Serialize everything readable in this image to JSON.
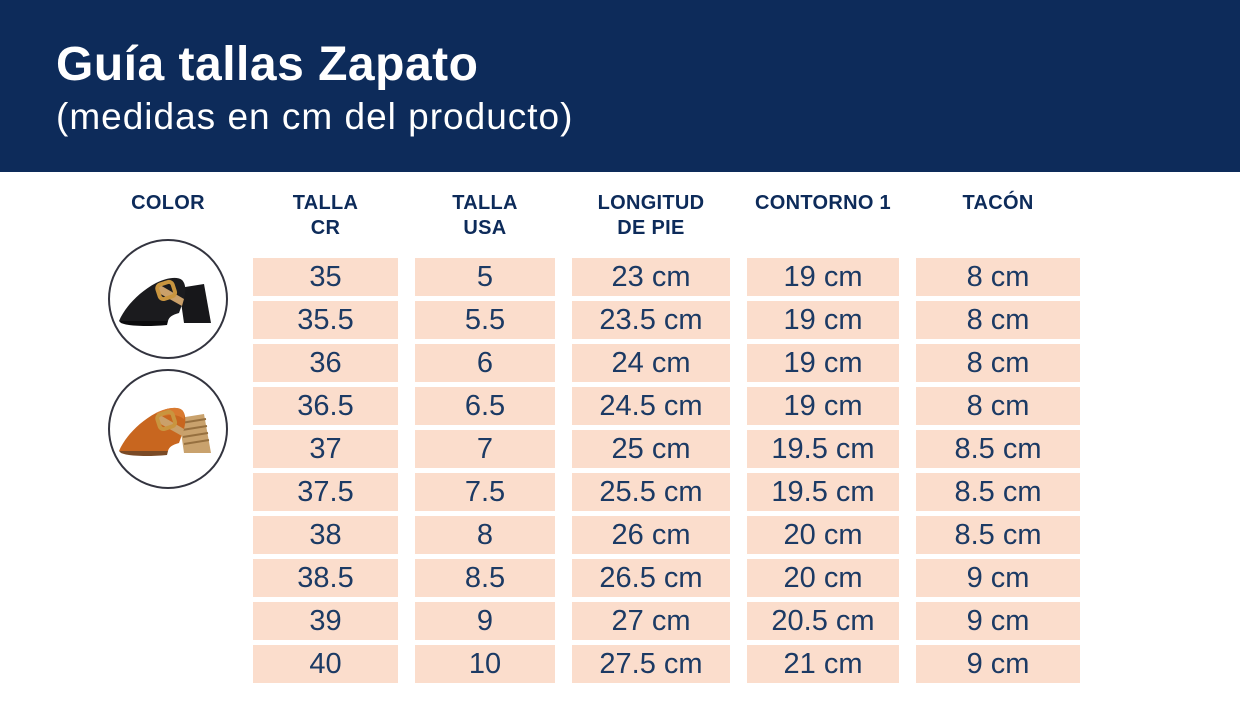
{
  "header": {
    "title": "Guía tallas Zapato",
    "subtitle": "(medidas en cm del producto)"
  },
  "table": {
    "columns": [
      {
        "id": "color",
        "lines": [
          "COLOR",
          ""
        ]
      },
      {
        "id": "talla_cr",
        "lines": [
          "TALLA",
          "CR"
        ]
      },
      {
        "id": "talla_usa",
        "lines": [
          "TALLA",
          "USA"
        ]
      },
      {
        "id": "longitud_pie",
        "lines": [
          "LONGITUD",
          "DE PIE"
        ]
      },
      {
        "id": "contorno_1",
        "lines": [
          "CONTORNO 1",
          ""
        ]
      },
      {
        "id": "tacon",
        "lines": [
          "TACÓN",
          ""
        ]
      }
    ],
    "rows": [
      [
        "35",
        "5",
        "23 cm",
        "19 cm",
        "8 cm"
      ],
      [
        "35.5",
        "5.5",
        "23.5 cm",
        "19 cm",
        "8 cm"
      ],
      [
        "36",
        "6",
        "24 cm",
        "19 cm",
        "8 cm"
      ],
      [
        "36.5",
        "6.5",
        "24.5 cm",
        "19 cm",
        "8 cm"
      ],
      [
        "37",
        "7",
        "25 cm",
        "19.5 cm",
        "8.5 cm"
      ],
      [
        "37.5",
        "7.5",
        "25.5 cm",
        "19.5 cm",
        "8.5 cm"
      ],
      [
        "38",
        "8",
        "26 cm",
        "20 cm",
        "8.5 cm"
      ],
      [
        "38.5",
        "8.5",
        "26.5 cm",
        "20 cm",
        "9 cm"
      ],
      [
        "39",
        "9",
        "27 cm",
        "20.5 cm",
        "9 cm"
      ],
      [
        "40",
        "10",
        "27.5 cm",
        "21 cm",
        "9 cm"
      ]
    ]
  },
  "swatches": [
    {
      "name": "black mule with gold buckle",
      "color_hex": "#1b1b1e"
    },
    {
      "name": "orange mule with wooden heel",
      "color_hex": "#c8661f"
    }
  ],
  "colors": {
    "banner_navy": "#0d2b5a",
    "cell_peach": "#fbddcc",
    "text_navy": "#1c3a64",
    "buckle_gold": "#c9953f",
    "wood_heel": "#c9a26d"
  }
}
